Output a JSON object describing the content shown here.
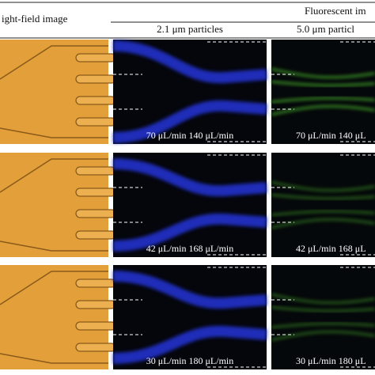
{
  "header": {
    "bright_field": "ight-field image",
    "fluorescent": "Fluorescent im",
    "columns": [
      "2.1 μm particles",
      "5.0 μm particl"
    ]
  },
  "rows": [
    {
      "blue_label": "70 μL/min 140 μL/min",
      "green_label": "70 μL/min 140 μL"
    },
    {
      "blue_label": "42 μL/min 168 μL/min",
      "green_label": "42 μL/min 168 μL"
    },
    {
      "blue_label": "30 μL/min 180 μL/min",
      "green_label": "30 μL/min 180 μL"
    }
  ]
}
